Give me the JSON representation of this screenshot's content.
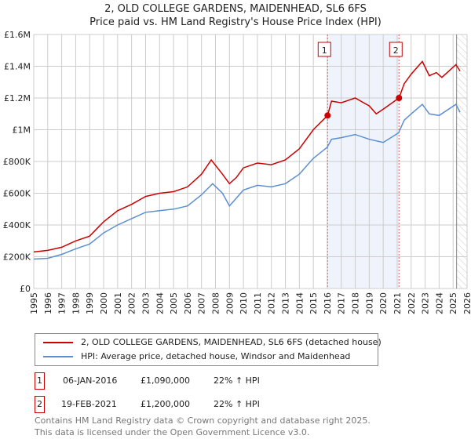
{
  "title_line1": "2, OLD COLLEGE GARDENS, MAIDENHEAD, SL6 6FS",
  "title_line2": "Price paid vs. HM Land Registry's House Price Index (HPI)",
  "chart_data": {
    "type": "line",
    "xlim": [
      1995,
      2026
    ],
    "ylim": [
      0,
      1600000
    ],
    "x_ticks": [
      "1995",
      "1996",
      "1997",
      "1998",
      "1999",
      "2000",
      "2001",
      "2002",
      "2003",
      "2004",
      "2005",
      "2006",
      "2007",
      "2008",
      "2009",
      "2010",
      "2011",
      "2012",
      "2013",
      "2014",
      "2015",
      "2016",
      "2017",
      "2018",
      "2019",
      "2020",
      "2021",
      "2022",
      "2023",
      "2024",
      "2025",
      "2026"
    ],
    "y_ticks": [
      {
        "v": 0,
        "label": "£0"
      },
      {
        "v": 200000,
        "label": "£200K"
      },
      {
        "v": 400000,
        "label": "£400K"
      },
      {
        "v": 600000,
        "label": "£600K"
      },
      {
        "v": 800000,
        "label": "£800K"
      },
      {
        "v": 1000000,
        "label": "£1M"
      },
      {
        "v": 1200000,
        "label": "£1.2M"
      },
      {
        "v": 1400000,
        "label": "£1.4M"
      },
      {
        "v": 1600000,
        "label": "£1.6M"
      }
    ],
    "grid": true,
    "series": [
      {
        "name": "2, OLD COLLEGE GARDENS, MAIDENHEAD, SL6 6FS (detached house)",
        "color": "#cc0000",
        "x": [
          1995,
          1996,
          1997,
          1998,
          1999,
          2000,
          2001,
          2002,
          2003,
          2004,
          2005,
          2006,
          2007,
          2007.7,
          2008.5,
          2009,
          2009.5,
          2010,
          2011,
          2012,
          2013,
          2014,
          2015,
          2016.02,
          2016.3,
          2017,
          2018,
          2019,
          2019.5,
          2020,
          2021.13,
          2021.5,
          2022,
          2022.8,
          2023.3,
          2023.8,
          2024.2,
          2025.2,
          2025.5
        ],
        "y": [
          230000,
          240000,
          260000,
          300000,
          330000,
          420000,
          490000,
          530000,
          580000,
          600000,
          610000,
          640000,
          720000,
          810000,
          720000,
          660000,
          700000,
          760000,
          790000,
          780000,
          810000,
          880000,
          1000000,
          1090000,
          1180000,
          1170000,
          1200000,
          1150000,
          1100000,
          1130000,
          1200000,
          1290000,
          1350000,
          1430000,
          1340000,
          1360000,
          1330000,
          1410000,
          1370000
        ]
      },
      {
        "name": "HPI: Average price, detached house, Windsor and Maidenhead",
        "color": "#5b8fd0",
        "x": [
          1995,
          1996,
          1997,
          1998,
          1999,
          2000,
          2001,
          2002,
          2003,
          2004,
          2005,
          2006,
          2007,
          2007.8,
          2008.5,
          2009,
          2009.5,
          2010,
          2011,
          2012,
          2013,
          2014,
          2015,
          2016,
          2016.3,
          2017,
          2018,
          2019,
          2020,
          2021.1,
          2021.5,
          2022,
          2022.8,
          2023.3,
          2024,
          2025.2,
          2025.5
        ],
        "y": [
          185000,
          190000,
          215000,
          250000,
          280000,
          350000,
          400000,
          440000,
          480000,
          490000,
          500000,
          520000,
          590000,
          660000,
          600000,
          520000,
          570000,
          620000,
          650000,
          640000,
          660000,
          720000,
          820000,
          890000,
          940000,
          950000,
          970000,
          940000,
          920000,
          980000,
          1060000,
          1100000,
          1160000,
          1100000,
          1090000,
          1160000,
          1110000
        ]
      }
    ],
    "sales": [
      {
        "label": "1",
        "x": 2016.02,
        "y": 1090000
      },
      {
        "label": "2",
        "x": 2021.13,
        "y": 1200000
      }
    ],
    "shaded_between_sales": "#eef3fc",
    "forecast_hatch_from": 2025.25
  },
  "legend": {
    "items": [
      {
        "label": "2, OLD COLLEGE GARDENS, MAIDENHEAD, SL6 6FS (detached house)",
        "color": "#cc0000"
      },
      {
        "label": "HPI: Average price, detached house, Windsor and Maidenhead",
        "color": "#5b8fd0"
      }
    ]
  },
  "transactions": [
    {
      "num": "1",
      "date": "06-JAN-2016",
      "price": "£1,090,000",
      "hpi": "22% ↑ HPI"
    },
    {
      "num": "2",
      "date": "19-FEB-2021",
      "price": "£1,200,000",
      "hpi": "22% ↑ HPI"
    }
  ],
  "footer_line1": "Contains HM Land Registry data © Crown copyright and database right 2025.",
  "footer_line2": "This data is licensed under the Open Government Licence v3.0."
}
